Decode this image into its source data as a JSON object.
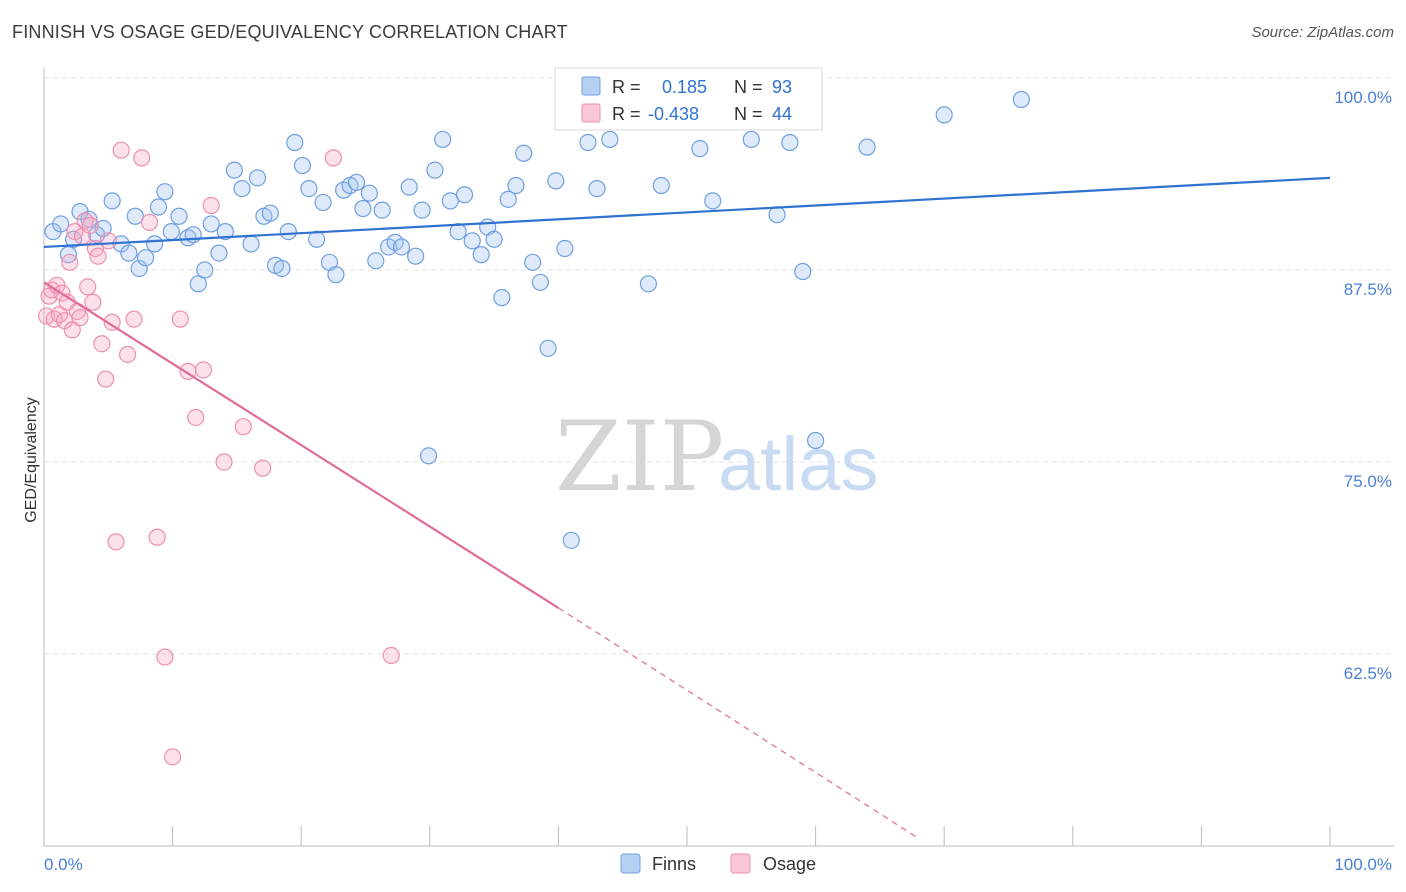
{
  "title": "FINNISH VS OSAGE GED/EQUIVALENCY CORRELATION CHART",
  "source": "Source: ZipAtlas.com",
  "watermark": {
    "zip": "ZIP",
    "atlas": "atlas"
  },
  "legend_box": {
    "rows": [
      {
        "r_label": "R =",
        "r_value": "0.185",
        "n_label": "N =",
        "n_value": "93"
      },
      {
        "r_label": "R =",
        "r_value": "-0.438",
        "n_label": "N =",
        "n_value": "44"
      }
    ]
  },
  "bottom_legend": [
    "Finns",
    "Osage"
  ],
  "colors": {
    "finns_fill": "rgba(160,195,240,0.35)",
    "finns_stroke": "#6f9fe0",
    "finns_line": "#2f72d0",
    "osage_fill": "rgba(245,170,195,0.35)",
    "osage_stroke": "#ec8fb0",
    "osage_line": "#e06a98",
    "axis_label": "#4a7fd4",
    "grid": "#e3e3e3"
  },
  "chart_data": {
    "type": "scatter",
    "title": "FINNISH VS OSAGE GED/EQUIVALENCY CORRELATION CHART",
    "xlabel": "",
    "ylabel": "GED/Equivalency",
    "xlim": [
      0,
      100
    ],
    "ylim": [
      51.5,
      101.5
    ],
    "x_tick_labels": [
      "0.0%",
      "100.0%"
    ],
    "y_ticks": [
      62.5,
      75.0,
      87.5,
      100.0
    ],
    "y_tick_labels": [
      "62.5%",
      "75.0%",
      "87.5%",
      "100.0%"
    ],
    "grid": true,
    "legend_position": "bottom-center",
    "series": [
      {
        "name": "Finns",
        "r": 0.185,
        "n": 93,
        "trend": {
          "x": [
            0,
            100
          ],
          "y": [
            89.0,
            93.5
          ]
        },
        "x": [
          0.7,
          1.3,
          1.9,
          2.3,
          2.8,
          3.5,
          4.1,
          4.6,
          5.3,
          6.0,
          6.6,
          7.1,
          7.4,
          7.9,
          8.6,
          8.9,
          9.4,
          9.9,
          10.5,
          11.2,
          11.6,
          12.0,
          12.5,
          13.0,
          13.6,
          14.1,
          14.8,
          15.4,
          16.1,
          16.6,
          17.1,
          17.6,
          18.0,
          18.5,
          19.0,
          19.5,
          20.1,
          20.6,
          21.2,
          21.7,
          22.2,
          22.7,
          23.3,
          23.8,
          24.3,
          24.8,
          25.3,
          25.8,
          26.3,
          26.8,
          27.3,
          27.8,
          28.4,
          28.9,
          29.4,
          29.9,
          30.4,
          31.0,
          31.6,
          32.2,
          32.7,
          33.3,
          34.0,
          34.5,
          35.0,
          35.6,
          36.1,
          36.7,
          37.3,
          38.0,
          38.6,
          39.2,
          39.8,
          40.5,
          41.0,
          41.7,
          42.3,
          43.0,
          44.0,
          45.0,
          47.0,
          48.0,
          50.0,
          51.0,
          52.0,
          55.0,
          57.0,
          58.0,
          59.0,
          60.0,
          64.0,
          70.0,
          76.0
        ],
        "y": [
          90.0,
          90.5,
          88.5,
          89.5,
          91.3,
          90.8,
          89.8,
          90.2,
          92.0,
          89.2,
          88.6,
          91.0,
          87.6,
          88.3,
          89.2,
          91.6,
          92.6,
          90.0,
          91.0,
          89.6,
          89.8,
          86.6,
          87.5,
          90.5,
          88.6,
          90.0,
          94.0,
          92.8,
          89.2,
          93.5,
          91.0,
          91.2,
          87.8,
          87.6,
          90.0,
          95.8,
          94.3,
          92.8,
          89.5,
          91.9,
          88.0,
          87.2,
          92.7,
          93.0,
          93.2,
          91.5,
          92.5,
          88.1,
          91.4,
          89.0,
          89.3,
          89.0,
          92.9,
          88.4,
          91.4,
          75.4,
          94.0,
          96.0,
          92.0,
          90.0,
          92.4,
          89.4,
          88.5,
          90.3,
          89.5,
          85.7,
          92.1,
          93.0,
          95.1,
          88.0,
          86.7,
          82.4,
          93.3,
          88.9,
          69.9,
          98.6,
          95.8,
          92.8,
          96.0,
          97.4,
          86.6,
          93.0,
          98.0,
          95.4,
          92.0,
          96.0,
          91.1,
          95.8,
          87.4,
          76.4,
          95.5,
          97.6,
          98.6
        ]
      },
      {
        "name": "Osage",
        "r": -0.438,
        "n": 44,
        "trend": {
          "x": [
            0,
            40
          ],
          "y": [
            86.7,
            65.5
          ],
          "dashed_to": {
            "x": 68,
            "y": 50.5
          }
        },
        "x": [
          0.2,
          0.4,
          0.6,
          0.8,
          1.0,
          1.2,
          1.4,
          1.6,
          1.8,
          2.0,
          2.2,
          2.4,
          2.6,
          2.8,
          3.0,
          3.2,
          3.4,
          3.6,
          3.8,
          4.0,
          4.2,
          4.5,
          4.8,
          5.0,
          5.3,
          5.6,
          6.0,
          6.5,
          7.0,
          7.6,
          8.2,
          8.8,
          9.4,
          10.0,
          10.6,
          11.2,
          11.8,
          12.4,
          13.0,
          14.0,
          15.5,
          17.0,
          22.5,
          27.0
        ],
        "y": [
          84.5,
          85.8,
          86.2,
          84.3,
          86.5,
          84.6,
          86.0,
          84.2,
          85.4,
          88.0,
          83.6,
          90.0,
          84.8,
          84.4,
          89.7,
          90.7,
          86.4,
          90.4,
          85.4,
          88.9,
          88.4,
          82.7,
          80.4,
          89.4,
          84.1,
          69.8,
          95.3,
          82.0,
          84.3,
          94.8,
          90.6,
          70.1,
          62.3,
          55.8,
          84.3,
          80.9,
          77.9,
          81.0,
          91.7,
          75.0,
          77.3,
          74.6,
          94.8,
          62.4
        ]
      }
    ]
  }
}
